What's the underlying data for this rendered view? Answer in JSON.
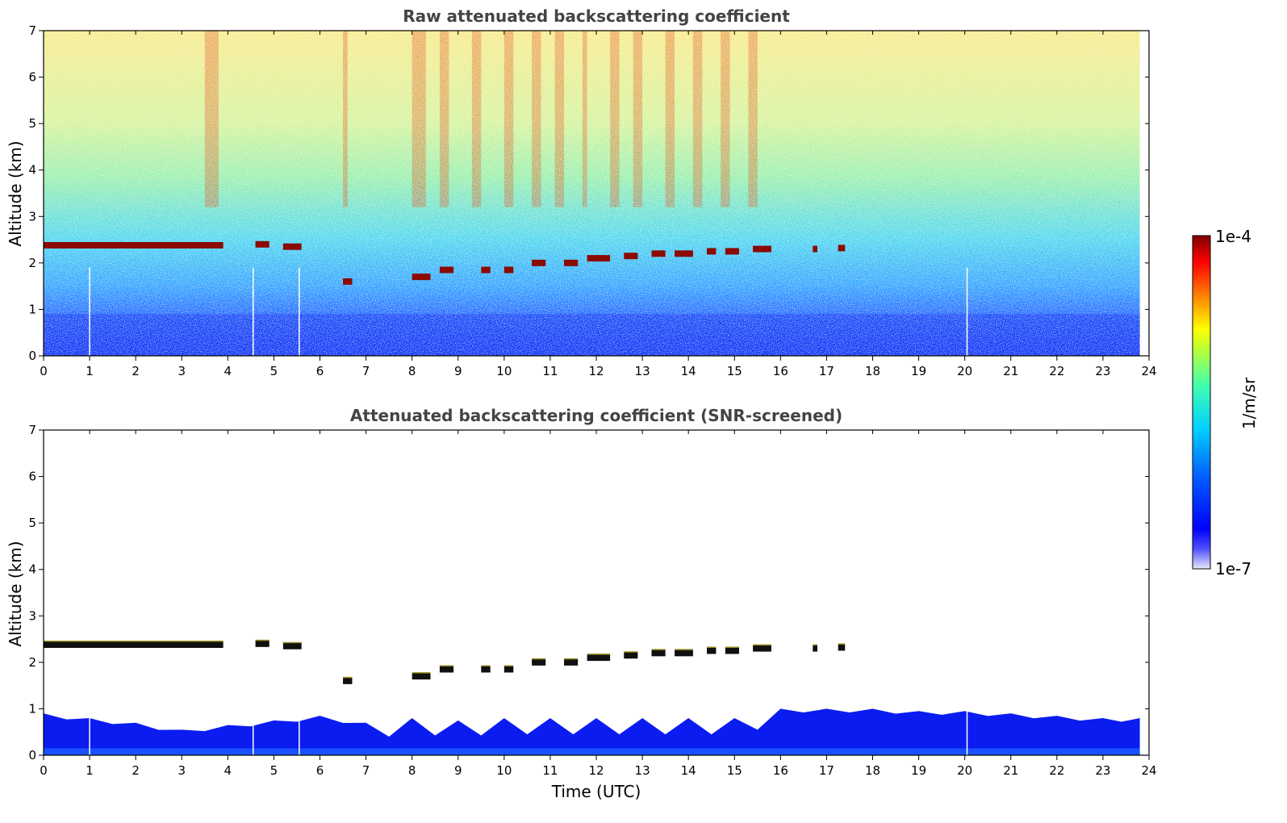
{
  "chart_data": [
    {
      "type": "heatmap",
      "title": "Raw attenuated backscattering coefficient",
      "xlabel": "",
      "ylabel": "Altitude (km)",
      "xlim": [
        0,
        24
      ],
      "ylim": [
        0,
        7
      ],
      "xticks": [
        "0",
        "1",
        "2",
        "3",
        "4",
        "5",
        "6",
        "7",
        "8",
        "9",
        "10",
        "11",
        "12",
        "13",
        "14",
        "15",
        "16",
        "17",
        "18",
        "19",
        "20",
        "21",
        "22",
        "23",
        "24"
      ],
      "yticks": [
        "0",
        "1",
        "2",
        "3",
        "4",
        "5",
        "6",
        "7"
      ],
      "data_end_time": 23.8,
      "layer_segments": [
        {
          "t0": 0.0,
          "t1": 3.9,
          "alt": 2.38
        },
        {
          "t0": 4.6,
          "t1": 4.9,
          "alt": 2.4
        },
        {
          "t0": 5.2,
          "t1": 5.6,
          "alt": 2.35
        },
        {
          "t0": 6.5,
          "t1": 6.7,
          "alt": 1.6
        },
        {
          "t0": 8.0,
          "t1": 8.4,
          "alt": 1.7
        },
        {
          "t0": 8.6,
          "t1": 8.9,
          "alt": 1.85
        },
        {
          "t0": 9.5,
          "t1": 9.7,
          "alt": 1.85
        },
        {
          "t0": 10.0,
          "t1": 10.2,
          "alt": 1.85
        },
        {
          "t0": 10.6,
          "t1": 10.9,
          "alt": 2.0
        },
        {
          "t0": 11.3,
          "t1": 11.6,
          "alt": 2.0
        },
        {
          "t0": 11.8,
          "t1": 12.3,
          "alt": 2.1
        },
        {
          "t0": 12.6,
          "t1": 12.9,
          "alt": 2.15
        },
        {
          "t0": 13.2,
          "t1": 13.5,
          "alt": 2.2
        },
        {
          "t0": 13.7,
          "t1": 14.1,
          "alt": 2.2
        },
        {
          "t0": 14.4,
          "t1": 14.6,
          "alt": 2.25
        },
        {
          "t0": 14.8,
          "t1": 15.1,
          "alt": 2.25
        },
        {
          "t0": 15.4,
          "t1": 15.8,
          "alt": 2.3
        },
        {
          "t0": 16.7,
          "t1": 16.8,
          "alt": 2.3
        },
        {
          "t0": 17.25,
          "t1": 17.4,
          "alt": 2.32
        }
      ]
    },
    {
      "type": "heatmap",
      "title": "Attenuated backscattering coefficient (SNR-screened)",
      "xlabel": "Time (UTC)",
      "ylabel": "Altitude (km)",
      "xlim": [
        0,
        24
      ],
      "ylim": [
        0,
        7
      ],
      "xticks": [
        "0",
        "1",
        "2",
        "3",
        "4",
        "5",
        "6",
        "7",
        "8",
        "9",
        "10",
        "11",
        "12",
        "13",
        "14",
        "15",
        "16",
        "17",
        "18",
        "19",
        "20",
        "21",
        "22",
        "23",
        "24"
      ],
      "yticks": [
        "0",
        "1",
        "2",
        "3",
        "4",
        "5",
        "6",
        "7"
      ],
      "boundary_layer_top_km": [
        {
          "t": 0,
          "h": 0.9
        },
        {
          "t": 1,
          "h": 0.8
        },
        {
          "t": 2,
          "h": 0.7
        },
        {
          "t": 3,
          "h": 0.55
        },
        {
          "t": 4,
          "h": 0.65
        },
        {
          "t": 5,
          "h": 0.75
        },
        {
          "t": 6,
          "h": 0.85
        },
        {
          "t": 7,
          "h": 0.7
        },
        {
          "t": 8,
          "h": 0.8
        },
        {
          "t": 9,
          "h": 0.75
        },
        {
          "t": 10,
          "h": 0.8
        },
        {
          "t": 11,
          "h": 0.8
        },
        {
          "t": 12,
          "h": 0.8
        },
        {
          "t": 13,
          "h": 0.8
        },
        {
          "t": 14,
          "h": 0.8
        },
        {
          "t": 15,
          "h": 0.8
        },
        {
          "t": 16,
          "h": 1.0
        },
        {
          "t": 17,
          "h": 1.0
        },
        {
          "t": 18,
          "h": 1.0
        },
        {
          "t": 19,
          "h": 0.95
        },
        {
          "t": 20,
          "h": 0.95
        },
        {
          "t": 21,
          "h": 0.9
        },
        {
          "t": 22,
          "h": 0.85
        },
        {
          "t": 23,
          "h": 0.8
        },
        {
          "t": 23.8,
          "h": 0.8
        }
      ]
    }
  ],
  "colorbar": {
    "label": "1/m/sr",
    "min_label": "1e-7",
    "max_label": "1e-4",
    "colors": [
      "#e8e8f8",
      "#0000ff",
      "#0050ff",
      "#00c8ff",
      "#60ff90",
      "#ffff00",
      "#ff8000",
      "#ff0000",
      "#800000"
    ]
  }
}
